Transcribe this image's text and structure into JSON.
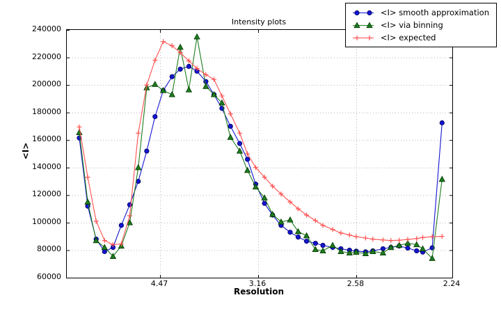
{
  "chart_data": {
    "type": "line",
    "title": "Intensity plots",
    "xlabel": "Resolution",
    "ylabel": "<I>",
    "x_axis_note": "resolution ticks spaced linearly in 1/d^2, d decreasing left to right",
    "xlim_resolution": [
      20.4,
      2.24
    ],
    "x_ticks": [
      4.47,
      3.16,
      2.58,
      2.24
    ],
    "y_ticks": [
      240000,
      220000,
      200000,
      180000,
      160000,
      140000,
      120000,
      100000,
      80000,
      60000
    ],
    "ylim": [
      60000,
      240000
    ],
    "grid": true,
    "legend_position": "upper right",
    "x_resolution": [
      10.67,
      8.74,
      7.58,
      6.79,
      6.2,
      5.75,
      5.38,
      5.07,
      4.81,
      4.59,
      4.4,
      4.22,
      4.07,
      3.93,
      3.81,
      3.69,
      3.59,
      3.5,
      3.41,
      3.32,
      3.25,
      3.18,
      3.11,
      3.05,
      2.99,
      2.93,
      2.88,
      2.83,
      2.78,
      2.74,
      2.69,
      2.65,
      2.61,
      2.58,
      2.54,
      2.51,
      2.47,
      2.44,
      2.41,
      2.38,
      2.35,
      2.33,
      2.3,
      2.27
    ],
    "series": [
      {
        "name": "<I> smooth approximation",
        "marker": "circle",
        "color": "#1414cf",
        "edge_color": "#000060",
        "values": [
          161500,
          112000,
          88000,
          79000,
          82000,
          98000,
          113000,
          130000,
          152000,
          177000,
          196000,
          206000,
          211500,
          213500,
          210000,
          202500,
          193000,
          183000,
          170000,
          157500,
          146000,
          128000,
          114000,
          105500,
          98000,
          93000,
          89500,
          86500,
          85000,
          83500,
          82000,
          81000,
          80000,
          79300,
          78800,
          79500,
          81000,
          82000,
          83000,
          81500,
          79500,
          78600,
          81700,
          172500
        ]
      },
      {
        "name": "<I> via binning",
        "marker": "triangle",
        "color": "#1e7b1e",
        "edge_color": "#003800",
        "values": [
          165500,
          115000,
          87000,
          82000,
          75500,
          83000,
          100000,
          140000,
          198000,
          200500,
          196000,
          193000,
          227500,
          196500,
          235000,
          199000,
          193000,
          187000,
          162000,
          152000,
          138000,
          126000,
          118000,
          106000,
          100500,
          102000,
          93500,
          90500,
          80500,
          79500,
          83500,
          79000,
          78000,
          78500,
          77500,
          79000,
          78000,
          82000,
          83500,
          85000,
          84000,
          81000,
          74000,
          131500
        ]
      },
      {
        "name": "<I> expected",
        "marker": "plus",
        "color": "#ff5050",
        "edge_color": "#ff5050",
        "values": [
          169500,
          133000,
          101000,
          87000,
          84000,
          84500,
          105000,
          165000,
          200000,
          218000,
          231500,
          228500,
          223500,
          217500,
          212000,
          207500,
          204000,
          192000,
          179000,
          165000,
          150000,
          140000,
          133000,
          126500,
          120800,
          115000,
          110000,
          105500,
          101500,
          98000,
          95000,
          92500,
          91000,
          89800,
          88800,
          88000,
          87400,
          87000,
          87200,
          87800,
          88400,
          89200,
          89800,
          90000
        ]
      }
    ],
    "style": {
      "grid_color": "#b4b4b4",
      "frame_color": "#000000",
      "background": "#ffffff"
    }
  }
}
